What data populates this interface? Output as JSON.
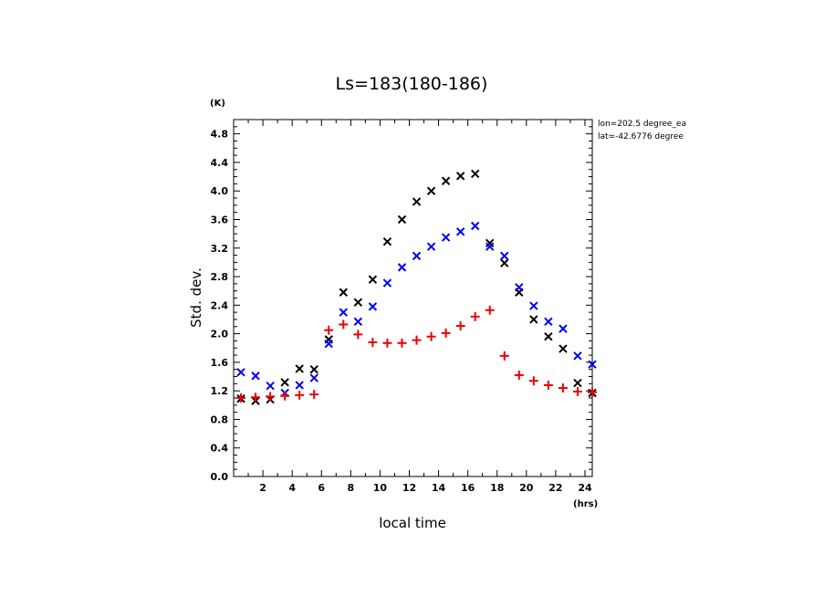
{
  "chart_data": {
    "type": "scatter",
    "title": "Ls=183(180-186)",
    "xlabel": "local time",
    "ylabel": "Std. dev.",
    "x_unit": "(hrs)",
    "y_unit": "(K)",
    "xlim": [
      0.0,
      24.5
    ],
    "ylim": [
      0.0,
      5.0
    ],
    "x_ticks": [
      "2",
      "4",
      "6",
      "8",
      "10",
      "12",
      "14",
      "16",
      "18",
      "20",
      "22",
      "24"
    ],
    "y_ticks": [
      "0.0",
      "0.4",
      "0.8",
      "1.2",
      "1.6",
      "2.0",
      "2.4",
      "2.8",
      "3.2",
      "3.6",
      "4.0",
      "4.4",
      "4.8"
    ],
    "annotations": [
      "lon=202.5 degree_ea",
      "lat=-42.6776 degree"
    ],
    "grid": false,
    "x": [
      0.5,
      1.5,
      2.5,
      3.5,
      4.5,
      5.5,
      6.5,
      7.5,
      8.5,
      9.5,
      10.5,
      11.5,
      12.5,
      13.5,
      14.5,
      15.5,
      16.5,
      17.5,
      18.5,
      19.5,
      20.5,
      21.5,
      22.5,
      23.5,
      24.5
    ],
    "series": [
      {
        "marker": "x",
        "color": "#000000",
        "values": [
          1.09,
          1.06,
          1.08,
          1.32,
          1.51,
          1.5,
          1.92,
          2.58,
          2.44,
          2.76,
          3.29,
          3.6,
          3.85,
          4.0,
          4.14,
          4.21,
          4.24,
          3.27,
          2.99,
          2.58,
          2.2,
          1.96,
          1.79,
          1.31,
          1.17
        ]
      },
      {
        "marker": "x",
        "color": "#0000ee",
        "values": [
          1.46,
          1.41,
          1.27,
          1.17,
          1.28,
          1.38,
          1.86,
          2.3,
          2.17,
          2.38,
          2.71,
          2.93,
          3.09,
          3.22,
          3.35,
          3.43,
          3.51,
          3.22,
          3.09,
          2.65,
          2.39,
          2.17,
          2.07,
          1.69,
          1.57
        ]
      },
      {
        "marker": "+",
        "color": "#ee0000",
        "values": [
          1.1,
          1.11,
          1.12,
          1.13,
          1.14,
          1.15,
          2.05,
          2.13,
          1.99,
          1.88,
          1.87,
          1.87,
          1.91,
          1.96,
          2.01,
          2.11,
          2.24,
          2.33,
          1.69,
          1.42,
          1.34,
          1.28,
          1.24,
          1.19,
          1.18
        ]
      }
    ]
  }
}
